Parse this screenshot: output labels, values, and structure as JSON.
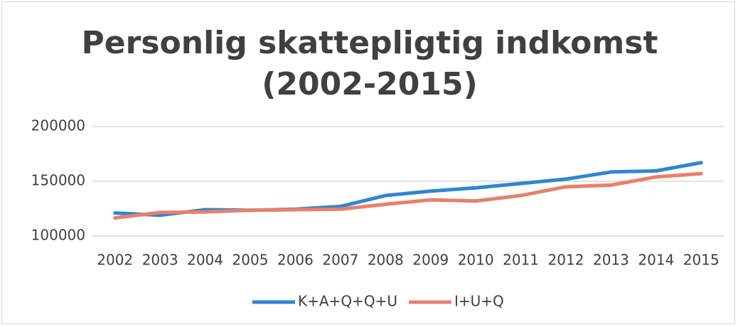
{
  "chart_data": {
    "type": "line",
    "title": "Personlig skattepligtig indkomst (2002-2015)",
    "categories": [
      "2002",
      "2003",
      "2004",
      "2005",
      "2006",
      "2007",
      "2008",
      "2009",
      "2010",
      "2011",
      "2012",
      "2013",
      "2014",
      "2015"
    ],
    "series": [
      {
        "name": "K+A+Q+Q+U",
        "color": "#2f86d1",
        "values": [
          121000,
          119000,
          124000,
          123500,
          124500,
          127000,
          137000,
          141000,
          144000,
          148000,
          152000,
          158500,
          159500,
          167000
        ]
      },
      {
        "name": "I+U+Q",
        "color": "#e8806a",
        "values": [
          116500,
          121500,
          122000,
          123500,
          124000,
          124500,
          129000,
          133000,
          132000,
          137000,
          145000,
          146500,
          154000,
          157000
        ]
      }
    ],
    "ylim": [
      100000,
      200000
    ],
    "yticks": [
      100000,
      150000,
      200000
    ],
    "grid": true,
    "legend": "bottom"
  }
}
